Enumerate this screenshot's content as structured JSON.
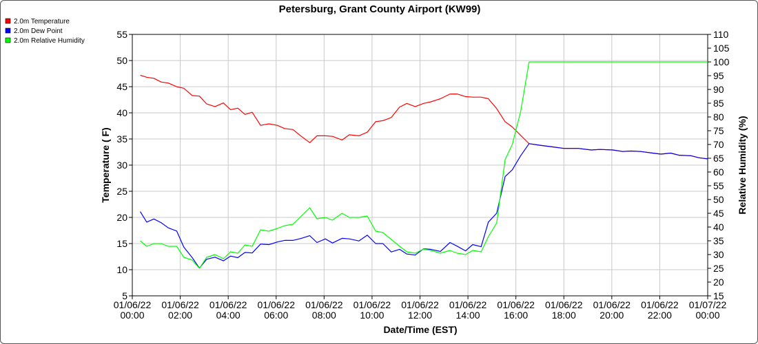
{
  "chart_data": {
    "type": "line",
    "title": "Petersburg, Grant County Airport (KW99)",
    "xlabel": "Date/Time (EST)",
    "ylabel": "Temperature ( F)",
    "y2label": "Relative Humidity (%)",
    "xlim": [
      0,
      24
    ],
    "ylim": [
      5,
      55
    ],
    "y2lim": [
      15,
      110
    ],
    "grid": true,
    "legend_position": "top-left",
    "x_ticks": [
      {
        "x": 0,
        "date": "01/06/22",
        "time": "00:00"
      },
      {
        "x": 2,
        "date": "01/06/22",
        "time": "02:00"
      },
      {
        "x": 4,
        "date": "01/06/22",
        "time": "04:00"
      },
      {
        "x": 6,
        "date": "01/06/22",
        "time": "06:00"
      },
      {
        "x": 8,
        "date": "01/06/22",
        "time": "08:00"
      },
      {
        "x": 10,
        "date": "01/06/22",
        "time": "10:00"
      },
      {
        "x": 12,
        "date": "01/06/22",
        "time": "12:00"
      },
      {
        "x": 14,
        "date": "01/06/22",
        "time": "14:00"
      },
      {
        "x": 16,
        "date": "01/06/22",
        "time": "16:00"
      },
      {
        "x": 18,
        "date": "01/06/22",
        "time": "18:00"
      },
      {
        "x": 20,
        "date": "01/06/22",
        "time": "20:00"
      },
      {
        "x": 22,
        "date": "01/06/22",
        "time": "22:00"
      },
      {
        "x": 24,
        "date": "01/07/22",
        "time": "00:00"
      }
    ],
    "y_ticks": [
      5,
      10,
      15,
      20,
      25,
      30,
      35,
      40,
      45,
      50,
      55
    ],
    "y2_ticks": [
      15,
      20,
      25,
      30,
      35,
      40,
      45,
      50,
      55,
      60,
      65,
      70,
      75,
      80,
      85,
      90,
      95,
      100,
      105,
      110
    ],
    "series": [
      {
        "name": "2.0m Temperature",
        "color": "#ff0000",
        "axis": "left",
        "points": [
          [
            0.33,
            47.2
          ],
          [
            0.6,
            46.8
          ],
          [
            0.9,
            46.6
          ],
          [
            1.2,
            45.9
          ],
          [
            1.5,
            45.7
          ],
          [
            1.85,
            45.0
          ],
          [
            2.15,
            44.7
          ],
          [
            2.5,
            43.3
          ],
          [
            2.8,
            43.2
          ],
          [
            3.1,
            41.7
          ],
          [
            3.45,
            41.2
          ],
          [
            3.8,
            41.9
          ],
          [
            4.1,
            40.6
          ],
          [
            4.4,
            40.9
          ],
          [
            4.7,
            39.7
          ],
          [
            5.0,
            40.1
          ],
          [
            5.35,
            37.6
          ],
          [
            5.7,
            37.9
          ],
          [
            6.05,
            37.6
          ],
          [
            6.35,
            37.0
          ],
          [
            6.7,
            36.8
          ],
          [
            7.05,
            35.5
          ],
          [
            7.4,
            34.3
          ],
          [
            7.7,
            35.6
          ],
          [
            8.05,
            35.6
          ],
          [
            8.35,
            35.5
          ],
          [
            8.75,
            34.8
          ],
          [
            9.05,
            35.8
          ],
          [
            9.45,
            35.6
          ],
          [
            9.8,
            36.3
          ],
          [
            10.15,
            38.3
          ],
          [
            10.45,
            38.5
          ],
          [
            10.8,
            39.1
          ],
          [
            11.15,
            41.1
          ],
          [
            11.45,
            41.8
          ],
          [
            11.8,
            41.2
          ],
          [
            12.15,
            41.8
          ],
          [
            12.45,
            42.1
          ],
          [
            12.85,
            42.7
          ],
          [
            13.25,
            43.6
          ],
          [
            13.55,
            43.6
          ],
          [
            13.9,
            43.1
          ],
          [
            14.2,
            43.0
          ],
          [
            14.55,
            43.0
          ],
          [
            14.85,
            42.7
          ],
          [
            15.2,
            40.8
          ],
          [
            15.55,
            38.3
          ],
          [
            15.85,
            37.3
          ],
          [
            16.2,
            35.7
          ],
          [
            16.55,
            34.1
          ],
          [
            17.0,
            33.8
          ],
          [
            17.5,
            33.5
          ],
          [
            18.0,
            33.2
          ],
          [
            18.6,
            33.2
          ],
          [
            19.15,
            32.9
          ],
          [
            19.5,
            33.0
          ],
          [
            20.05,
            32.9
          ],
          [
            20.45,
            32.6
          ],
          [
            20.8,
            32.7
          ],
          [
            21.2,
            32.6
          ],
          [
            21.7,
            32.3
          ],
          [
            22.05,
            32.1
          ],
          [
            22.45,
            32.3
          ],
          [
            22.8,
            31.9
          ],
          [
            23.3,
            31.8
          ],
          [
            23.65,
            31.4
          ],
          [
            24.0,
            31.2
          ]
        ]
      },
      {
        "name": "2.0m Dew Point",
        "color": "#0000ff",
        "axis": "left",
        "points": [
          [
            0.33,
            21.1
          ],
          [
            0.6,
            19.1
          ],
          [
            0.9,
            19.7
          ],
          [
            1.2,
            19.0
          ],
          [
            1.5,
            18.0
          ],
          [
            1.85,
            17.4
          ],
          [
            2.15,
            14.3
          ],
          [
            2.5,
            12.3
          ],
          [
            2.8,
            10.3
          ],
          [
            3.1,
            12.0
          ],
          [
            3.45,
            12.4
          ],
          [
            3.8,
            11.7
          ],
          [
            4.1,
            12.6
          ],
          [
            4.4,
            12.3
          ],
          [
            4.7,
            13.3
          ],
          [
            5.0,
            13.2
          ],
          [
            5.35,
            14.9
          ],
          [
            5.7,
            14.8
          ],
          [
            6.05,
            15.3
          ],
          [
            6.35,
            15.6
          ],
          [
            6.7,
            15.6
          ],
          [
            7.05,
            16.0
          ],
          [
            7.4,
            16.5
          ],
          [
            7.7,
            15.2
          ],
          [
            8.05,
            15.9
          ],
          [
            8.35,
            15.1
          ],
          [
            8.75,
            16.0
          ],
          [
            9.05,
            15.9
          ],
          [
            9.45,
            15.5
          ],
          [
            9.8,
            16.6
          ],
          [
            10.15,
            15.0
          ],
          [
            10.45,
            15.0
          ],
          [
            10.8,
            13.4
          ],
          [
            11.15,
            13.9
          ],
          [
            11.45,
            13.0
          ],
          [
            11.8,
            12.8
          ],
          [
            12.15,
            14.0
          ],
          [
            12.45,
            13.9
          ],
          [
            12.85,
            13.5
          ],
          [
            13.25,
            15.2
          ],
          [
            13.55,
            14.5
          ],
          [
            13.9,
            13.6
          ],
          [
            14.2,
            14.8
          ],
          [
            14.55,
            14.4
          ],
          [
            14.85,
            19.1
          ],
          [
            15.2,
            20.8
          ],
          [
            15.55,
            27.8
          ],
          [
            15.85,
            29.1
          ],
          [
            16.2,
            31.8
          ],
          [
            16.55,
            34.1
          ],
          [
            17.0,
            33.8
          ],
          [
            17.5,
            33.5
          ],
          [
            18.0,
            33.2
          ],
          [
            18.6,
            33.2
          ],
          [
            19.15,
            32.9
          ],
          [
            19.5,
            33.0
          ],
          [
            20.05,
            32.9
          ],
          [
            20.45,
            32.6
          ],
          [
            20.8,
            32.7
          ],
          [
            21.2,
            32.6
          ],
          [
            21.7,
            32.3
          ],
          [
            22.05,
            32.1
          ],
          [
            22.45,
            32.3
          ],
          [
            22.8,
            31.9
          ],
          [
            23.3,
            31.8
          ],
          [
            23.65,
            31.4
          ],
          [
            24.0,
            31.2
          ]
        ]
      },
      {
        "name": "2.0m Relative Humidity",
        "color": "#00ff00",
        "axis": "right",
        "points": [
          [
            0.33,
            35.0
          ],
          [
            0.6,
            33.0
          ],
          [
            0.9,
            34.0
          ],
          [
            1.2,
            34.0
          ],
          [
            1.5,
            33.0
          ],
          [
            1.85,
            33.0
          ],
          [
            2.15,
            29.0
          ],
          [
            2.5,
            28.0
          ],
          [
            2.8,
            25.0
          ],
          [
            3.1,
            29.0
          ],
          [
            3.45,
            30.0
          ],
          [
            3.8,
            28.5
          ],
          [
            4.1,
            31.0
          ],
          [
            4.4,
            30.5
          ],
          [
            4.7,
            33.5
          ],
          [
            5.0,
            33.0
          ],
          [
            5.35,
            39.0
          ],
          [
            5.7,
            38.5
          ],
          [
            6.05,
            39.5
          ],
          [
            6.35,
            40.5
          ],
          [
            6.7,
            41.0
          ],
          [
            7.05,
            44.0
          ],
          [
            7.4,
            47.0
          ],
          [
            7.7,
            43.0
          ],
          [
            8.05,
            43.5
          ],
          [
            8.35,
            42.5
          ],
          [
            8.75,
            45.0
          ],
          [
            9.05,
            43.5
          ],
          [
            9.45,
            43.5
          ],
          [
            9.8,
            44.0
          ],
          [
            10.15,
            38.5
          ],
          [
            10.45,
            38.0
          ],
          [
            10.8,
            35.5
          ],
          [
            11.15,
            33.0
          ],
          [
            11.45,
            31.0
          ],
          [
            11.8,
            30.5
          ],
          [
            12.15,
            32.0
          ],
          [
            12.45,
            31.5
          ],
          [
            12.85,
            30.5
          ],
          [
            13.25,
            31.5
          ],
          [
            13.55,
            30.5
          ],
          [
            13.9,
            30.0
          ],
          [
            14.2,
            31.5
          ],
          [
            14.55,
            31.0
          ],
          [
            14.85,
            36.5
          ],
          [
            15.2,
            41.5
          ],
          [
            15.55,
            64.5
          ],
          [
            15.85,
            70.0
          ],
          [
            16.2,
            82.0
          ],
          [
            16.55,
            100.0
          ],
          [
            24.0,
            100.0
          ]
        ]
      }
    ]
  }
}
